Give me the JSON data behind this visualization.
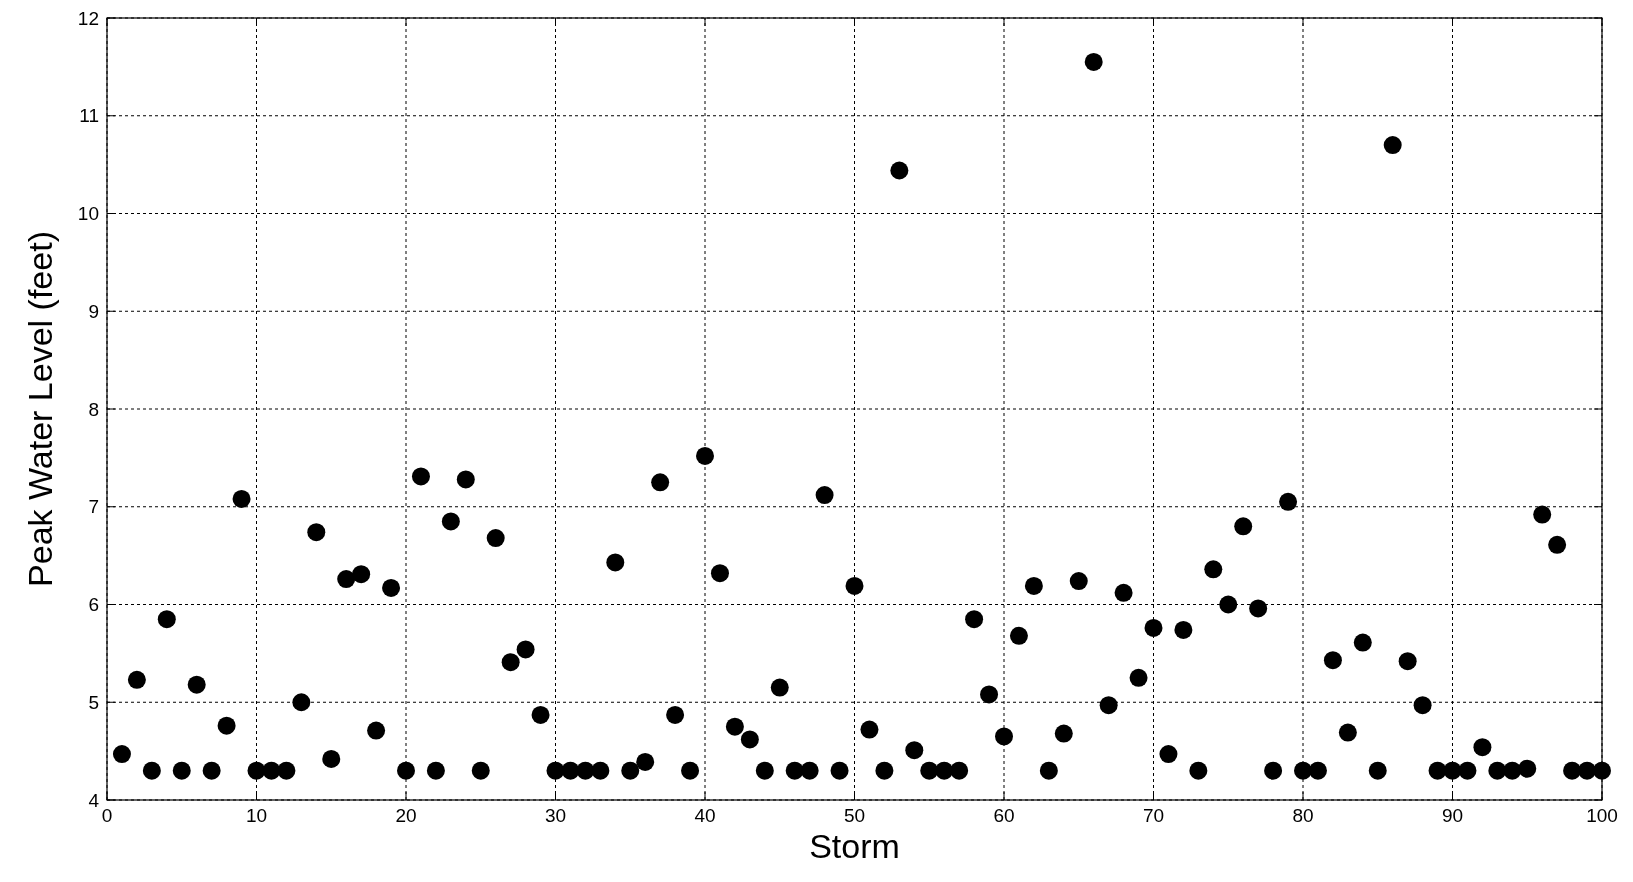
{
  "chart_data": {
    "type": "scatter",
    "xlabel": "Storm",
    "ylabel": "Peak Water Level (feet)",
    "x": [
      1,
      2,
      3,
      4,
      5,
      6,
      7,
      8,
      9,
      10,
      11,
      12,
      13,
      14,
      15,
      16,
      17,
      18,
      19,
      20,
      21,
      22,
      23,
      24,
      25,
      26,
      27,
      28,
      29,
      30,
      31,
      32,
      33,
      34,
      35,
      36,
      37,
      38,
      39,
      40,
      41,
      42,
      43,
      44,
      45,
      46,
      47,
      48,
      49,
      50,
      51,
      52,
      53,
      54,
      55,
      56,
      57,
      58,
      59,
      60,
      61,
      62,
      63,
      64,
      65,
      66,
      67,
      68,
      69,
      70,
      71,
      72,
      73,
      74,
      75,
      76,
      77,
      78,
      79,
      80,
      81,
      82,
      83,
      84,
      85,
      86,
      87,
      88,
      89,
      90,
      91,
      92,
      93,
      94,
      95,
      96,
      97,
      98,
      99,
      100
    ],
    "series": [
      {
        "color": "#000000",
        "values": [
          4.47,
          5.23,
          4.3,
          5.85,
          4.3,
          5.18,
          4.3,
          4.76,
          7.08,
          4.3,
          4.3,
          4.3,
          5.0,
          6.74,
          4.42,
          6.26,
          6.31,
          4.71,
          6.17,
          4.3,
          7.31,
          4.3,
          6.85,
          7.28,
          4.3,
          6.68,
          5.41,
          5.54,
          4.87,
          4.3,
          4.3,
          4.3,
          4.3,
          6.43,
          4.3,
          4.39,
          7.25,
          4.87,
          4.3,
          7.52,
          6.32,
          4.75,
          4.62,
          4.3,
          5.15,
          4.3,
          4.3,
          7.12,
          4.3,
          6.19,
          4.72,
          4.3,
          10.44,
          4.51,
          4.3,
          4.3,
          4.3,
          5.85,
          5.08,
          4.65,
          5.68,
          6.19,
          4.3,
          4.68,
          6.24,
          11.55,
          4.97,
          6.12,
          5.25,
          5.76,
          4.47,
          5.74,
          4.3,
          6.36,
          6.0,
          6.8,
          5.96,
          4.3,
          7.05,
          4.3,
          4.3,
          5.43,
          4.69,
          5.61,
          4.3,
          10.7,
          5.42,
          4.97,
          4.3,
          4.3,
          4.3,
          4.54,
          4.3,
          4.3,
          4.32,
          6.92,
          6.61,
          4.3,
          4.3,
          4.3
        ]
      }
    ],
    "xlim": [
      0,
      100
    ],
    "xticks": [
      0,
      10,
      20,
      30,
      40,
      50,
      60,
      70,
      80,
      90,
      100
    ],
    "ylim": [
      4,
      12
    ],
    "yticks": [
      4,
      5,
      6,
      7,
      8,
      9,
      10,
      11,
      12
    ],
    "grid": true,
    "marker": "circle"
  }
}
